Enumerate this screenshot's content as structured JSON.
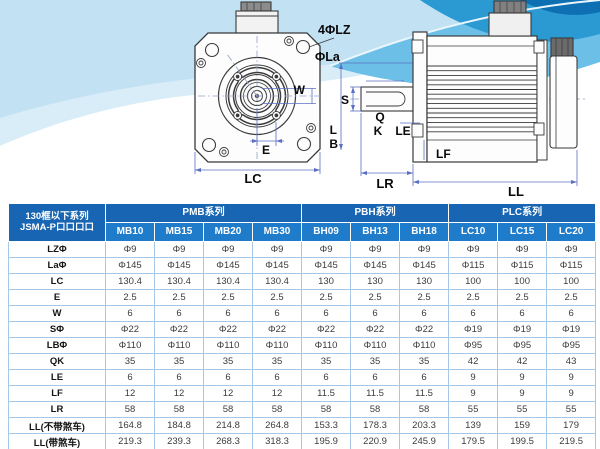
{
  "colors": {
    "header_primary": "#1765b3",
    "header_secondary": "#1f7ccb",
    "grid_line": "#a6c8e8",
    "dimension_line": "#5b6fc4",
    "drawing_outline": "#3a3a3a",
    "wave_light": "#d9edf9",
    "wave_mid": "#6cc0e8",
    "wave_dark": "#2b9ad2"
  },
  "drawing": {
    "front_view": {
      "holes_label": "4ΦLZ",
      "boss_label": "ΦLa",
      "keyway_width_label": "W",
      "offset_label": "E",
      "frame_width_label": "LC"
    },
    "side_view": {
      "shaft_dia_label": "S",
      "key_q_label": "Q",
      "key_k_label": "K",
      "le_label": "LE",
      "l_label": "L",
      "b_label": "B",
      "lf_label": "LF",
      "shaft_len_label": "LR",
      "body_len_label": "LL"
    }
  },
  "table": {
    "corner_header": {
      "line1": "130框以下系列",
      "line2": "JSMA-P口口口口"
    },
    "series_groups": [
      {
        "label": "PMB系列",
        "span": 4
      },
      {
        "label": "PBH系列",
        "span": 3
      },
      {
        "label": "PLC系列",
        "span": 3
      }
    ],
    "models": [
      "MB10",
      "MB15",
      "MB20",
      "MB30",
      "BH09",
      "BH13",
      "BH18",
      "LC10",
      "LC15",
      "LC20"
    ],
    "rows": [
      {
        "label": "LZΦ",
        "values": [
          "Φ9",
          "Φ9",
          "Φ9",
          "Φ9",
          "Φ9",
          "Φ9",
          "Φ9",
          "Φ9",
          "Φ9",
          "Φ9"
        ]
      },
      {
        "label": "LaΦ",
        "values": [
          "Φ145",
          "Φ145",
          "Φ145",
          "Φ145",
          "Φ145",
          "Φ145",
          "Φ145",
          "Φ115",
          "Φ115",
          "Φ115"
        ]
      },
      {
        "label": "LC",
        "values": [
          "130.4",
          "130.4",
          "130.4",
          "130.4",
          "130",
          "130",
          "130",
          "100",
          "100",
          "100"
        ]
      },
      {
        "label": "E",
        "values": [
          "2.5",
          "2.5",
          "2.5",
          "2.5",
          "2.5",
          "2.5",
          "2.5",
          "2.5",
          "2.5",
          "2.5"
        ]
      },
      {
        "label": "W",
        "values": [
          "6",
          "6",
          "6",
          "6",
          "6",
          "6",
          "6",
          "6",
          "6",
          "6"
        ]
      },
      {
        "label": "SΦ",
        "values": [
          "Φ22",
          "Φ22",
          "Φ22",
          "Φ22",
          "Φ22",
          "Φ22",
          "Φ22",
          "Φ19",
          "Φ19",
          "Φ19"
        ]
      },
      {
        "label": "LBΦ",
        "values": [
          "Φ110",
          "Φ110",
          "Φ110",
          "Φ110",
          "Φ110",
          "Φ110",
          "Φ110",
          "Φ95",
          "Φ95",
          "Φ95"
        ]
      },
      {
        "label": "QK",
        "values": [
          "35",
          "35",
          "35",
          "35",
          "35",
          "35",
          "35",
          "42",
          "42",
          "43"
        ]
      },
      {
        "label": "LE",
        "values": [
          "6",
          "6",
          "6",
          "6",
          "6",
          "6",
          "6",
          "9",
          "9",
          "9"
        ]
      },
      {
        "label": "LF",
        "values": [
          "12",
          "12",
          "12",
          "12",
          "11.5",
          "11.5",
          "11.5",
          "9",
          "9",
          "9"
        ]
      },
      {
        "label": "LR",
        "values": [
          "58",
          "58",
          "58",
          "58",
          "58",
          "58",
          "58",
          "55",
          "55",
          "55"
        ]
      },
      {
        "label": "LL(不带煞车)",
        "values": [
          "164.8",
          "184.8",
          "214.8",
          "264.8",
          "153.3",
          "178.3",
          "203.3",
          "139",
          "159",
          "179"
        ]
      },
      {
        "label": "LL(带煞车)",
        "values": [
          "219.3",
          "239.3",
          "268.3",
          "318.3",
          "195.9",
          "220.9",
          "245.9",
          "179.5",
          "199.5",
          "219.5"
        ]
      }
    ]
  }
}
